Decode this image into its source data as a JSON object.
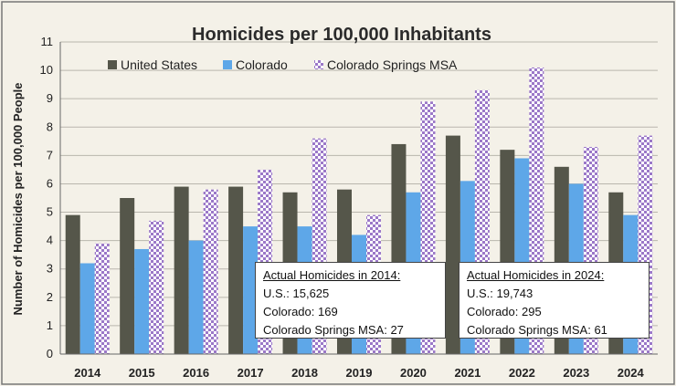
{
  "chart_data": {
    "type": "bar",
    "title": "Homicides per 100,000 Inhabitants",
    "ylabel": "Number of Homicides per 100,000 People",
    "xlabel": "",
    "ylim": [
      0,
      11
    ],
    "yticks": [
      0,
      1,
      2,
      3,
      4,
      5,
      6,
      7,
      8,
      9,
      10,
      11
    ],
    "grid": true,
    "legend_position": "top-left",
    "categories": [
      "2014",
      "2015",
      "2016",
      "2017",
      "2018",
      "2019",
      "2020",
      "2021",
      "2022",
      "2023",
      "2024"
    ],
    "series": [
      {
        "name": "United States",
        "color": "#55564a",
        "pattern": "solid",
        "values": [
          4.9,
          5.5,
          5.9,
          5.9,
          5.7,
          5.8,
          7.4,
          7.7,
          7.2,
          6.6,
          5.7
        ]
      },
      {
        "name": "Colorado",
        "color": "#5ea7e8",
        "pattern": "solid",
        "values": [
          3.2,
          3.7,
          4.0,
          4.5,
          4.5,
          4.2,
          5.7,
          6.1,
          6.9,
          6.0,
          4.9
        ]
      },
      {
        "name": "Colorado Springs MSA",
        "color": "#9b78c8",
        "pattern": "checker",
        "values": [
          3.9,
          4.7,
          5.8,
          6.5,
          7.6,
          4.9,
          8.9,
          9.3,
          10.1,
          7.3,
          7.7
        ]
      }
    ],
    "annotations": [
      {
        "title": "Actual Homicides in 2014:",
        "lines": [
          "U.S.: 15,625",
          "Colorado: 169",
          "Colorado Springs MSA: 27"
        ]
      },
      {
        "title": "Actual Homicides in 2024:",
        "lines": [
          "U.S.: 19,743",
          "Colorado: 295",
          "Colorado Springs MSA: 61"
        ]
      }
    ]
  }
}
